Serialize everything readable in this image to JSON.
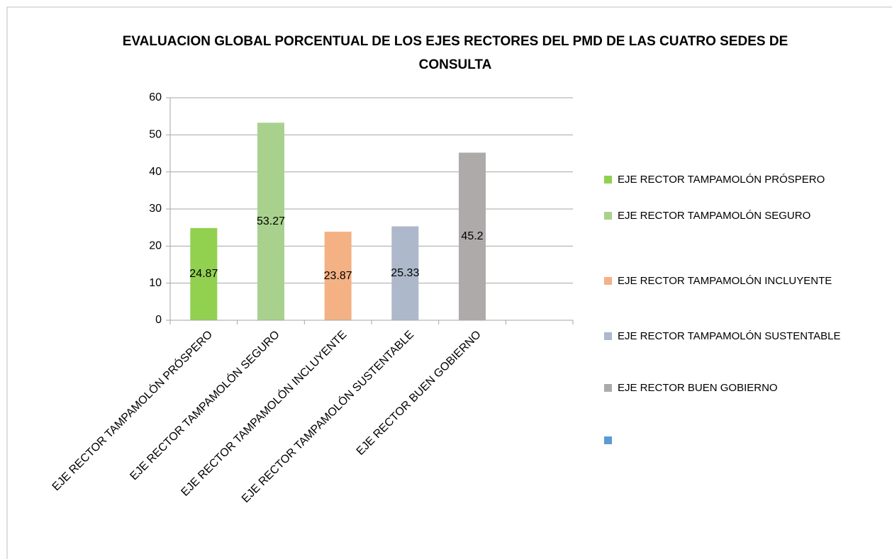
{
  "chart_data": {
    "type": "bar",
    "title": "EVALUACION GLOBAL PORCENTUAL DE LOS EJES RECTORES DEL PMD DE LAS CUATRO SEDES DE CONSULTA",
    "categories": [
      "EJE RECTOR TAMPAMOLÓN PRÓSPERO",
      "EJE RECTOR TAMPAMOLÓN SEGURO",
      "EJE RECTOR TAMPAMOLÓN INCLUYENTE",
      "EJE RECTOR TAMPAMOLÓN SUSTENTABLE",
      "EJE RECTOR BUEN GOBIERNO",
      null
    ],
    "values": [
      24.87,
      53.27,
      23.87,
      25.33,
      45.2,
      null
    ],
    "colors": [
      "#92d050",
      "#a9d18e",
      "#f4b183",
      "#adb9ca",
      "#aeaaaa",
      "#5b9bd5"
    ],
    "ylim": [
      0,
      60
    ],
    "yticks": [
      0,
      10,
      20,
      30,
      40,
      50,
      60
    ],
    "grid": true,
    "legend": "right"
  }
}
